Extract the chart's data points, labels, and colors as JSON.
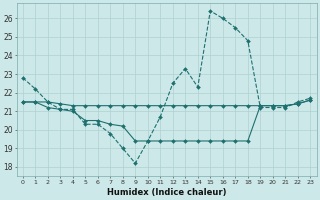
{
  "xlabel": "Humidex (Indice chaleur)",
  "bg_color": "#cde8e8",
  "grid_color": "#b0d0d0",
  "line_color": "#1e7070",
  "xlim": [
    -0.5,
    23.5
  ],
  "ylim": [
    17.5,
    26.8
  ],
  "xticks": [
    0,
    1,
    2,
    3,
    4,
    5,
    6,
    7,
    8,
    9,
    10,
    11,
    12,
    13,
    14,
    15,
    16,
    17,
    18,
    19,
    20,
    21,
    22,
    23
  ],
  "yticks": [
    18,
    19,
    20,
    21,
    22,
    23,
    24,
    25,
    26
  ],
  "series1_x": [
    0,
    1,
    2,
    3,
    4,
    5,
    6,
    7,
    8,
    9,
    10,
    11,
    12,
    13,
    14,
    15,
    16,
    17,
    18,
    19,
    20,
    21,
    22,
    23
  ],
  "series1_y": [
    22.8,
    22.2,
    21.5,
    21.1,
    21.1,
    20.3,
    20.3,
    19.8,
    19.0,
    18.2,
    19.4,
    20.7,
    22.5,
    23.3,
    22.3,
    26.4,
    26.0,
    25.5,
    24.8,
    21.2,
    21.2,
    21.2,
    21.5,
    21.7
  ],
  "series2_x": [
    0,
    1,
    2,
    3,
    4,
    5,
    6,
    7,
    8,
    9,
    10,
    11,
    12,
    13,
    14,
    15,
    16,
    17,
    18,
    19,
    20,
    21,
    22,
    23
  ],
  "series2_y": [
    21.5,
    21.5,
    21.5,
    21.4,
    21.3,
    21.3,
    21.3,
    21.3,
    21.3,
    21.3,
    21.3,
    21.3,
    21.3,
    21.3,
    21.3,
    21.3,
    21.3,
    21.3,
    21.3,
    21.3,
    21.3,
    21.3,
    21.4,
    21.6
  ],
  "series3_x": [
    0,
    1,
    2,
    3,
    4,
    5,
    6,
    7,
    8,
    9,
    10,
    11,
    12,
    13,
    14,
    15,
    16,
    17,
    18,
    19,
    20,
    21,
    22,
    23
  ],
  "series3_y": [
    21.5,
    21.5,
    21.2,
    21.1,
    21.0,
    20.5,
    20.5,
    20.3,
    20.2,
    19.4,
    19.4,
    19.4,
    19.4,
    19.4,
    19.4,
    19.4,
    19.4,
    19.4,
    19.4,
    21.3,
    21.3,
    21.3,
    21.4,
    21.6
  ]
}
